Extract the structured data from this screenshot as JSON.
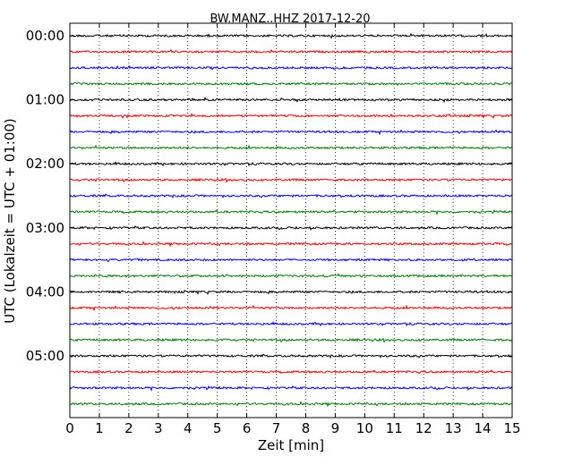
{
  "chart_data": {
    "type": "line",
    "title": "BW.MANZ..HHZ 2017-12-20",
    "xlabel": "Zeit  [min]",
    "ylabel": "UTC (Lokalzeit = UTC + 01:00)",
    "xlim": [
      0,
      15
    ],
    "x_ticks": [
      0,
      1,
      2,
      3,
      4,
      5,
      6,
      7,
      8,
      9,
      10,
      11,
      12,
      13,
      14,
      15
    ],
    "x_tick_labels": [
      "0",
      "1",
      "2",
      "3",
      "4",
      "5",
      "6",
      "7",
      "8",
      "9",
      "10",
      "11",
      "12",
      "13",
      "14",
      "15"
    ],
    "y_tick_labels": [
      "00:00",
      "01:00",
      "02:00",
      "03:00",
      "04:00",
      "05:00"
    ],
    "y_tick_rows": [
      0,
      4,
      8,
      12,
      16,
      20
    ],
    "row_count": 24,
    "row_interval_minutes": 15,
    "trace_colors": [
      "#000000",
      "#ff0000",
      "#0000ff",
      "#008000"
    ],
    "grid": "vertical dotted lines at each minute",
    "legend": "none"
  }
}
